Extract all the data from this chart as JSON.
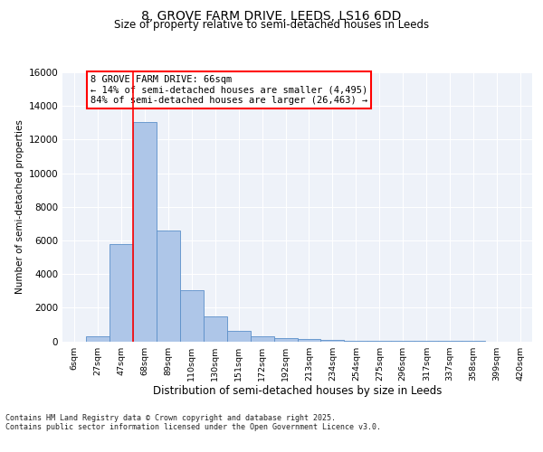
{
  "title_line1": "8, GROVE FARM DRIVE, LEEDS, LS16 6DD",
  "title_line2": "Size of property relative to semi-detached houses in Leeds",
  "xlabel": "Distribution of semi-detached houses by size in Leeds",
  "ylabel": "Number of semi-detached properties",
  "categories": [
    "6sqm",
    "27sqm",
    "47sqm",
    "68sqm",
    "89sqm",
    "110sqm",
    "130sqm",
    "151sqm",
    "172sqm",
    "192sqm",
    "213sqm",
    "234sqm",
    "254sqm",
    "275sqm",
    "296sqm",
    "317sqm",
    "337sqm",
    "358sqm",
    "399sqm",
    "420sqm"
  ],
  "values": [
    0,
    300,
    5800,
    13050,
    6600,
    3050,
    1500,
    620,
    300,
    180,
    150,
    80,
    50,
    20,
    10,
    5,
    2,
    1,
    0,
    0
  ],
  "bar_color": "#aec6e8",
  "bar_edge_color": "#5b8fc9",
  "vline_color": "red",
  "vline_x": 2.5,
  "annotation_text": "8 GROVE FARM DRIVE: 66sqm\n← 14% of semi-detached houses are smaller (4,495)\n84% of semi-detached houses are larger (26,463) →",
  "annotation_box_color": "white",
  "annotation_box_edge_color": "red",
  "ylim": [
    0,
    16000
  ],
  "yticks": [
    0,
    2000,
    4000,
    6000,
    8000,
    10000,
    12000,
    14000,
    16000
  ],
  "bg_color": "#eef2f9",
  "grid_color": "white",
  "footer_line1": "Contains HM Land Registry data © Crown copyright and database right 2025.",
  "footer_line2": "Contains public sector information licensed under the Open Government Licence v3.0."
}
